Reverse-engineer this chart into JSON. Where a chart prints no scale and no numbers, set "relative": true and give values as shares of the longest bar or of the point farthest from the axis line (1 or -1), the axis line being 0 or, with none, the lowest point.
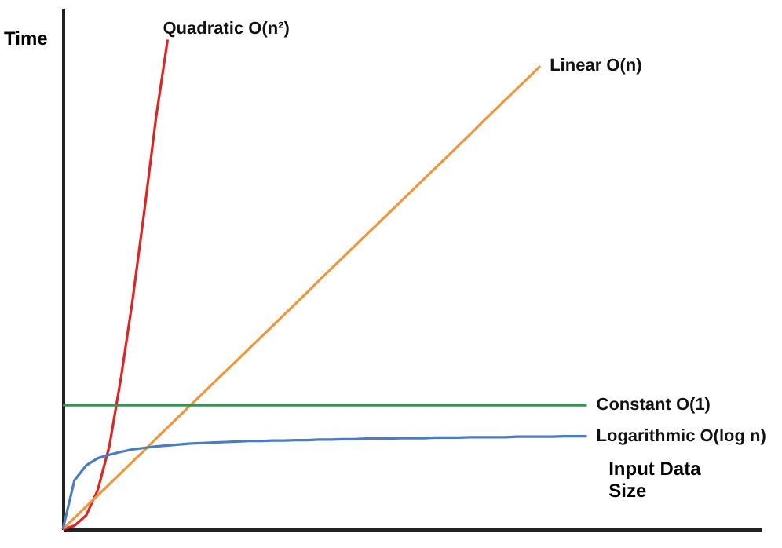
{
  "chart_data": {
    "type": "line",
    "relative": true,
    "xlabel": "Input Data Size",
    "ylabel": "Time",
    "legend": false,
    "marker": "none",
    "line_style": "solid",
    "categories": [
      null,
      null,
      null,
      null,
      null,
      null,
      null,
      null,
      null,
      null,
      null,
      null,
      null,
      null,
      null,
      null,
      null,
      null,
      null,
      null,
      null,
      null,
      null,
      null,
      null,
      null,
      null,
      null,
      null,
      null,
      null,
      null,
      null,
      null,
      null,
      null,
      null,
      null,
      null,
      null,
      null,
      null,
      null,
      null,
      null,
      null,
      null,
      null,
      null,
      null,
      null,
      null,
      null,
      null,
      null,
      null,
      null,
      null,
      null,
      null,
      null
    ],
    "series": [
      {
        "name": "Quadratic O(n²)",
        "color": "#e02424",
        "values": [
          0,
          0.007,
          0.028,
          0.08,
          0.17,
          0.31,
          0.47,
          0.65,
          0.84,
          1,
          null,
          null,
          null,
          null,
          null,
          null,
          null,
          null,
          null,
          null,
          null,
          null,
          null,
          null,
          null,
          null,
          null,
          null,
          null,
          null,
          null,
          null,
          null,
          null,
          null,
          null,
          null,
          null,
          null,
          null,
          null,
          null,
          null,
          null,
          null,
          null,
          null,
          null,
          null,
          null,
          null,
          null,
          null,
          null,
          null,
          null,
          null,
          null,
          null,
          null,
          null
        ]
      },
      {
        "name": "Linear O(n)",
        "color": "#f0963c",
        "values": [
          0,
          0.023,
          0.046,
          0.069,
          0.092,
          0.115,
          0.138,
          0.161,
          0.185,
          0.208,
          0.231,
          0.254,
          0.277,
          0.3,
          0.323,
          0.346,
          0.369,
          0.392,
          0.415,
          0.438,
          0.461,
          0.484,
          0.508,
          0.531,
          0.554,
          0.577,
          0.6,
          0.623,
          0.646,
          0.669,
          0.692,
          0.715,
          0.738,
          0.761,
          0.784,
          0.807,
          0.831,
          0.854,
          0.877,
          0.9,
          0.923,
          0.946,
          null,
          null,
          null,
          null,
          null,
          null,
          null,
          null,
          null,
          null,
          null,
          null,
          null,
          null,
          null,
          null,
          null,
          null,
          null
        ]
      },
      {
        "name": "Constant O(1)",
        "color": "#1fa050",
        "values": [
          0.253,
          0.253,
          0.253,
          0.253,
          0.253,
          0.253,
          0.253,
          0.253,
          0.253,
          0.253,
          0.253,
          0.253,
          0.253,
          0.253,
          0.253,
          0.253,
          0.253,
          0.253,
          0.253,
          0.253,
          0.253,
          0.253,
          0.253,
          0.253,
          0.253,
          0.253,
          0.253,
          0.253,
          0.253,
          0.253,
          0.253,
          0.253,
          0.253,
          0.253,
          0.253,
          0.253,
          0.253,
          0.253,
          0.253,
          0.253,
          0.253,
          0.253,
          0.253,
          0.253,
          0.253,
          0.253,
          null,
          null,
          null,
          null,
          null,
          null,
          null,
          null,
          null,
          null,
          null,
          null,
          null,
          null,
          null
        ]
      },
      {
        "name": "Logarithmic O(log n)",
        "color": "#4a7cc4",
        "values": [
          0,
          0.1,
          0.13,
          0.145,
          0.152,
          0.158,
          0.163,
          0.166,
          0.169,
          0.171,
          0.173,
          0.175,
          0.176,
          0.177,
          0.178,
          0.179,
          0.18,
          0.18,
          0.181,
          0.181,
          0.182,
          0.182,
          0.183,
          0.183,
          0.184,
          0.184,
          0.185,
          0.185,
          0.185,
          0.186,
          0.186,
          0.186,
          0.187,
          0.187,
          0.187,
          0.188,
          0.188,
          0.188,
          0.188,
          0.189,
          0.189,
          0.189,
          0.189,
          0.19,
          0.19,
          0.19,
          null,
          null,
          null,
          null,
          null,
          null,
          null,
          null,
          null,
          null,
          null,
          null,
          null,
          null,
          null
        ]
      }
    ]
  }
}
